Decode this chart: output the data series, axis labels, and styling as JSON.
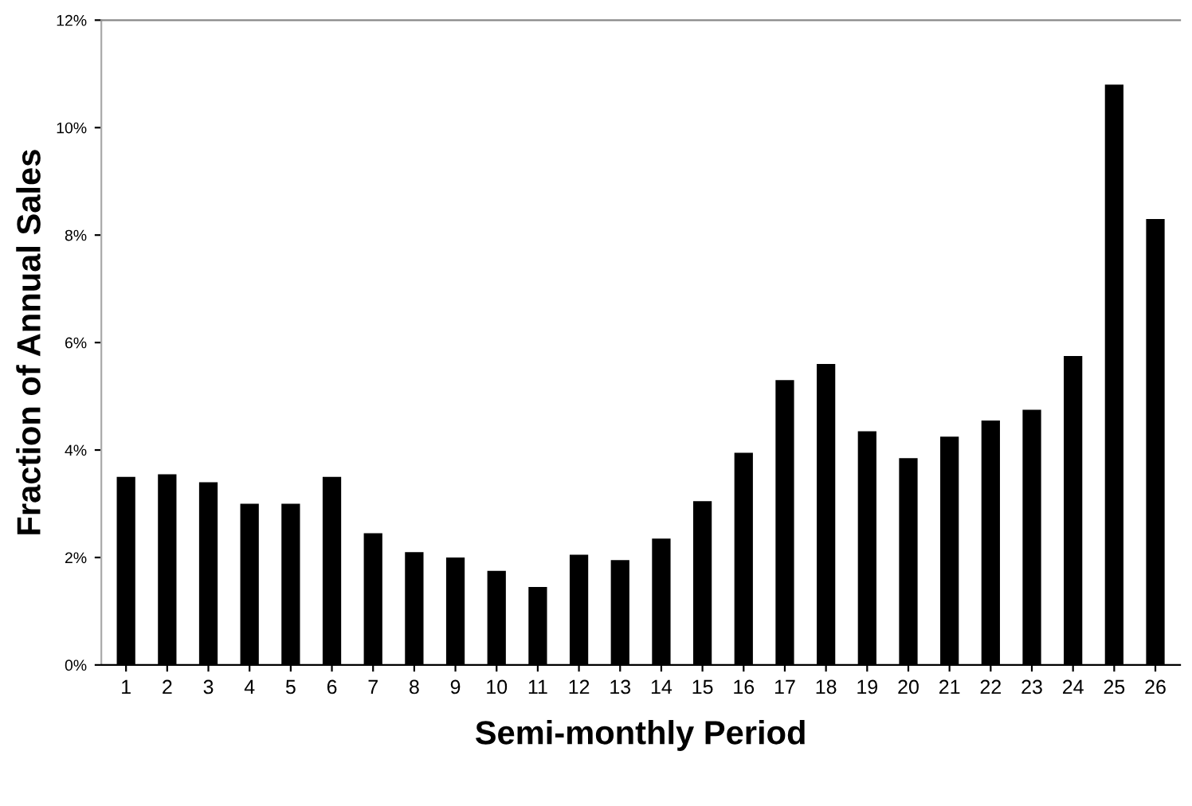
{
  "chart_data": {
    "type": "bar",
    "xlabel": "Semi-monthly Period",
    "ylabel": "Fraction of Annual Sales",
    "categories": [
      "1",
      "2",
      "3",
      "4",
      "5",
      "6",
      "7",
      "8",
      "9",
      "10",
      "11",
      "12",
      "13",
      "14",
      "15",
      "16",
      "17",
      "18",
      "19",
      "20",
      "21",
      "22",
      "23",
      "24",
      "25",
      "26"
    ],
    "values": [
      3.5,
      3.55,
      3.4,
      3.0,
      3.0,
      3.5,
      2.45,
      2.1,
      2.0,
      1.75,
      1.45,
      2.05,
      1.95,
      2.35,
      3.05,
      3.95,
      5.3,
      5.6,
      4.35,
      3.85,
      4.25,
      4.55,
      4.75,
      5.75,
      10.8,
      8.3
    ],
    "color": "#000000",
    "ylim": [
      0,
      12
    ],
    "yticks": [
      {
        "value": 0,
        "label": "0%"
      },
      {
        "value": 2,
        "label": "2%"
      },
      {
        "value": 4,
        "label": "4%"
      },
      {
        "value": 6,
        "label": "6%"
      },
      {
        "value": 8,
        "label": "8%"
      },
      {
        "value": 10,
        "label": "10%"
      },
      {
        "value": 12,
        "label": "12%"
      }
    ],
    "grid": false
  }
}
